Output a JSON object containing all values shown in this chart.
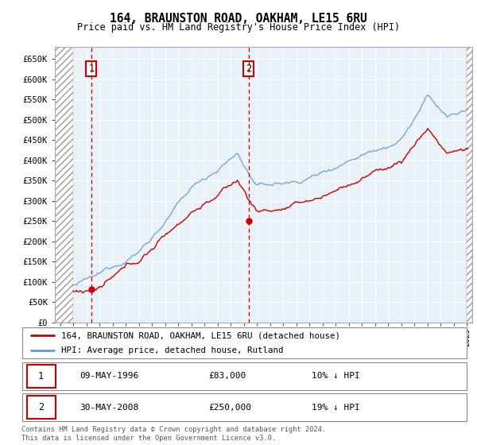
{
  "title": "164, BRAUNSTON ROAD, OAKHAM, LE15 6RU",
  "subtitle": "Price paid vs. HM Land Registry's House Price Index (HPI)",
  "sale1_date": "09-MAY-1996",
  "sale1_price": 83000,
  "sale1_label": "10% ↓ HPI",
  "sale2_date": "30-MAY-2008",
  "sale2_price": 250000,
  "sale2_label": "19% ↓ HPI",
  "legend_line1": "164, BRAUNSTON ROAD, OAKHAM, LE15 6RU (detached house)",
  "legend_line2": "HPI: Average price, detached house, Rutland",
  "footnote": "Contains HM Land Registry data © Crown copyright and database right 2024.\nThis data is licensed under the Open Government Licence v3.0.",
  "price_color": "#cc0000",
  "hpi_color": "#6699cc",
  "ylim_max": 680000,
  "yticks": [
    0,
    50000,
    100000,
    150000,
    200000,
    250000,
    300000,
    350000,
    400000,
    450000,
    500000,
    550000,
    600000,
    650000
  ],
  "ytick_labels": [
    "£0",
    "£50K",
    "£100K",
    "£150K",
    "£200K",
    "£250K",
    "£300K",
    "£350K",
    "£400K",
    "£450K",
    "£500K",
    "£550K",
    "£600K",
    "£650K"
  ],
  "sale1_year": 1996.37,
  "sale2_year": 2008.37,
  "data_start_year": 1995.0,
  "xlim_start": 1993.6,
  "xlim_end": 2025.4
}
